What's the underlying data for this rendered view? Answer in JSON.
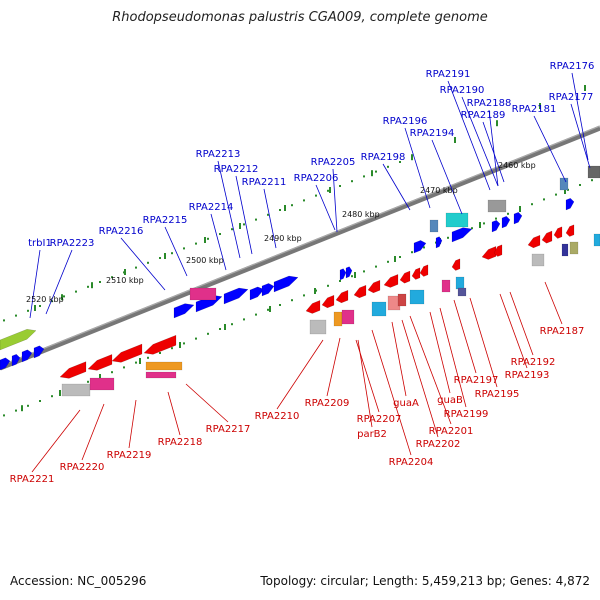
{
  "title": "Rhodopseudomonas palustris CGA009, complete genome",
  "footer": {
    "accession": "Accession: NC_005296",
    "topology": "Topology: circular; Length: 5,459,213 bp; Genes: 4,872"
  },
  "colors": {
    "forward_label": "#0000cc",
    "reverse_label": "#cc0000",
    "forward_gene": "#0000ff",
    "reverse_gene": "#ee0000",
    "backbone": "#777777",
    "tick": "#2a8a2a"
  },
  "scale_labels": [
    "2460 kbp",
    "2470 kbp",
    "2480 kbp",
    "2490 kbp",
    "2500 kbp",
    "2510 kbp",
    "2520 kbp"
  ],
  "forward_labels": [
    "trbI1",
    "RPA2223",
    "RPA2216",
    "RPA2215",
    "RPA2214",
    "RPA2213",
    "RPA2212",
    "RPA2211",
    "RPA2206",
    "RPA2205",
    "RPA2198",
    "RPA2196",
    "RPA2194",
    "RPA2191",
    "RPA2190",
    "RPA2189",
    "RPA2188",
    "RPA2181",
    "RPA2177",
    "RPA2176"
  ],
  "reverse_labels": [
    "RPA2221",
    "RPA2220",
    "RPA2219",
    "RPA2218",
    "RPA2217",
    "RPA2210",
    "RPA2209",
    "RPA2207",
    "parB2",
    "RPA2204",
    "guaA",
    "RPA2202",
    "RPA2201",
    "guaB",
    "RPA2199",
    "RPA2197",
    "RPA2195",
    "RPA2193",
    "RPA2192",
    "RPA2187"
  ]
}
